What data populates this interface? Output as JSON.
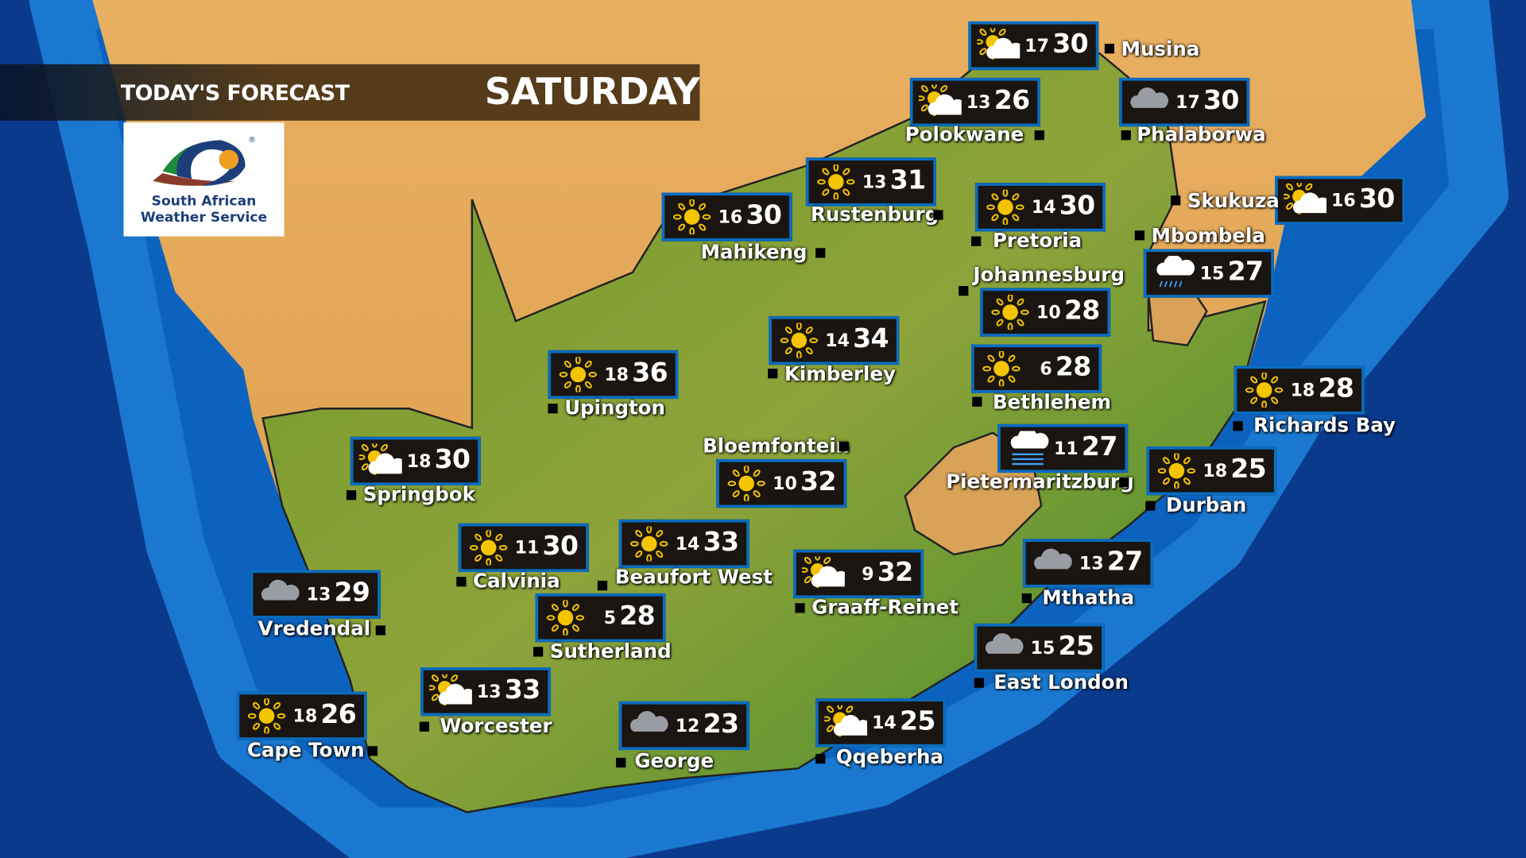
{
  "header": {
    "title": "TODAY'S FORECAST",
    "day": "SATURDAY"
  },
  "logo": {
    "line1": "South African",
    "line2": "Weather Service",
    "registered": "®"
  },
  "colors": {
    "card_border": "#0a6cc0",
    "card_bg": "#1a1510",
    "ocean": "#0a5fb8",
    "deep_ocean": "#0a3a8c",
    "sun": "#f5c400"
  },
  "cities": [
    {
      "name": "Musina",
      "min": "17",
      "max": "30",
      "icon": "partly-cloudy"
    },
    {
      "name": "Polokwane",
      "min": "13",
      "max": "26",
      "icon": "partly-cloudy"
    },
    {
      "name": "Phalaborwa",
      "min": "17",
      "max": "30",
      "icon": "cloudy"
    },
    {
      "name": "Rustenburg",
      "min": "13",
      "max": "31",
      "icon": "sunny"
    },
    {
      "name": "Mahikeng",
      "min": "16",
      "max": "30",
      "icon": "sunny"
    },
    {
      "name": "Pretoria",
      "min": "14",
      "max": "30",
      "icon": "sunny"
    },
    {
      "name": "Skukuza",
      "min": "16",
      "max": "30",
      "icon": "partly-cloudy"
    },
    {
      "name": "Mbombela",
      "min": "15",
      "max": "27",
      "icon": "rain"
    },
    {
      "name": "Johannesburg",
      "min": "10",
      "max": "28",
      "icon": "sunny"
    },
    {
      "name": "Kimberley",
      "min": "14",
      "max": "34",
      "icon": "sunny"
    },
    {
      "name": "Upington",
      "min": "18",
      "max": "36",
      "icon": "sunny"
    },
    {
      "name": "Bethlehem",
      "min": "6",
      "max": "28",
      "icon": "sunny"
    },
    {
      "name": "Richards Bay",
      "min": "18",
      "max": "28",
      "icon": "sunny"
    },
    {
      "name": "Springbok",
      "min": "18",
      "max": "30",
      "icon": "partly-cloudy"
    },
    {
      "name": "Bloemfontein",
      "min": "10",
      "max": "32",
      "icon": "sunny"
    },
    {
      "name": "Pietermaritzburg",
      "min": "11",
      "max": "27",
      "icon": "fog"
    },
    {
      "name": "Durban",
      "min": "18",
      "max": "25",
      "icon": "sunny"
    },
    {
      "name": "Calvinia",
      "min": "11",
      "max": "30",
      "icon": "sunny"
    },
    {
      "name": "Beaufort West",
      "min": "14",
      "max": "33",
      "icon": "sunny"
    },
    {
      "name": "Graaff-Reinet",
      "min": "9",
      "max": "32",
      "icon": "partly-cloudy"
    },
    {
      "name": "Mthatha",
      "min": "13",
      "max": "27",
      "icon": "cloudy"
    },
    {
      "name": "Vredendal",
      "min": "13",
      "max": "29",
      "icon": "cloudy"
    },
    {
      "name": "Sutherland",
      "min": "5",
      "max": "28",
      "icon": "sunny"
    },
    {
      "name": "East London",
      "min": "15",
      "max": "25",
      "icon": "cloudy"
    },
    {
      "name": "Worcester",
      "min": "13",
      "max": "33",
      "icon": "partly-cloudy"
    },
    {
      "name": "Cape Town",
      "min": "18",
      "max": "26",
      "icon": "sunny"
    },
    {
      "name": "George",
      "min": "12",
      "max": "23",
      "icon": "cloudy"
    },
    {
      "name": "Qqeberha",
      "min": "14",
      "max": "25",
      "icon": "partly-cloudy"
    }
  ]
}
